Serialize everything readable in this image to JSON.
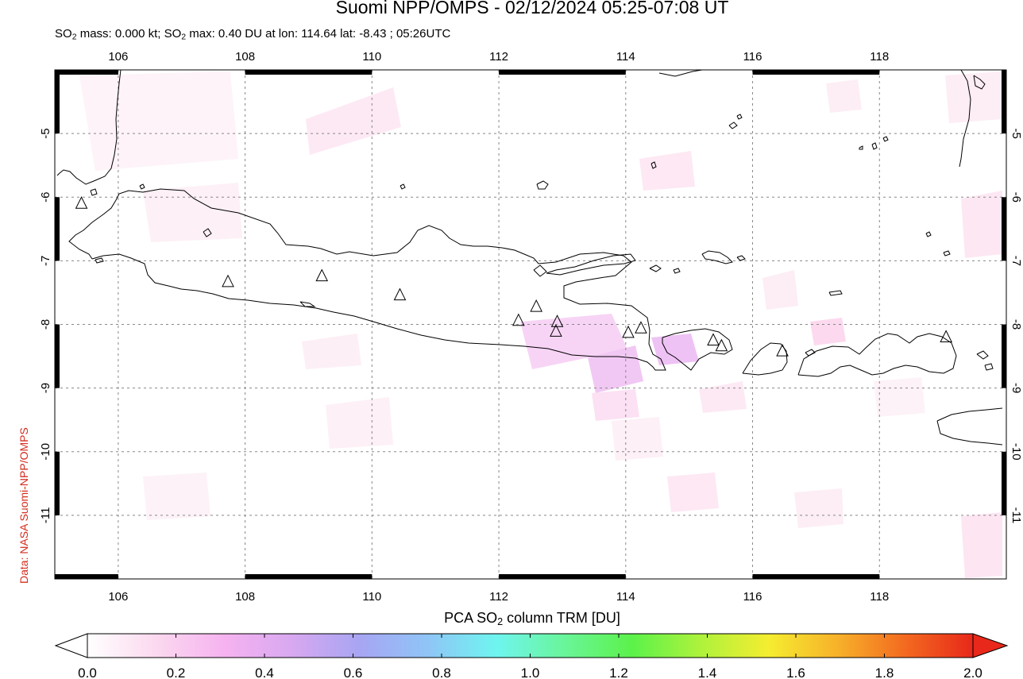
{
  "header": {
    "title": "Suomi NPP/OMPS - 02/12/2024 05:25-07:08 UT",
    "subtitle_parts": {
      "p1": "SO",
      "sub1": "2",
      "p2": " mass: 0.000 kt; SO",
      "sub2": "2",
      "p3": " max: 0.40 DU at lon: 114.64 lat: -8.43 ; 05:26UTC"
    }
  },
  "credit": "Data: NASA Suomi-NPP/OMPS",
  "map": {
    "lon_range": [
      105,
      120
    ],
    "lat_range": [
      -12,
      -4
    ],
    "lon_ticks": [
      106,
      108,
      110,
      112,
      114,
      116,
      118
    ],
    "lat_ticks": [
      -5,
      -6,
      -7,
      -8,
      -9,
      -10,
      -11
    ],
    "lon_tick_labels": [
      "106",
      "108",
      "110",
      "112",
      "114",
      "116",
      "118"
    ],
    "lat_tick_labels": [
      "-5",
      "-6",
      "-7",
      "-8",
      "-9",
      "-10",
      "-11"
    ],
    "grid": true,
    "volcano_marker_icon": "triangle-outline-icon",
    "volcanoes": [
      {
        "lon": 105.42,
        "lat": -6.1
      },
      {
        "lon": 107.73,
        "lat": -7.33
      },
      {
        "lon": 109.21,
        "lat": -7.24
      },
      {
        "lon": 110.44,
        "lat": -7.54
      },
      {
        "lon": 112.31,
        "lat": -7.94
      },
      {
        "lon": 112.59,
        "lat": -7.72
      },
      {
        "lon": 112.92,
        "lat": -7.96
      },
      {
        "lon": 112.9,
        "lat": -8.11
      },
      {
        "lon": 114.04,
        "lat": -8.13
      },
      {
        "lon": 114.24,
        "lat": -8.06
      },
      {
        "lon": 115.38,
        "lat": -8.25
      },
      {
        "lon": 115.51,
        "lat": -8.34
      },
      {
        "lon": 116.47,
        "lat": -8.42
      },
      {
        "lon": 119.05,
        "lat": -8.2
      }
    ],
    "so2_max_point": {
      "lon": 114.64,
      "lat": -8.43,
      "value": 0.4
    }
  },
  "colorbar": {
    "title_parts": {
      "p1": "PCA SO",
      "sub": "2",
      "p2": " column TRM [DU]"
    },
    "min": 0.0,
    "max": 2.0,
    "tick_values": [
      0.0,
      0.2,
      0.4,
      0.6,
      0.8,
      1.0,
      1.2,
      1.4,
      1.6,
      1.8,
      2.0
    ],
    "tick_labels": [
      "0.0",
      "0.2",
      "0.4",
      "0.6",
      "0.8",
      "1.0",
      "1.2",
      "1.4",
      "1.6",
      "1.8",
      "2.0"
    ],
    "colors": [
      "#ffffff",
      "#fbd9ef",
      "#f6b3f0",
      "#d8a8f0",
      "#a7a5f3",
      "#8fc5f6",
      "#6ff5f0",
      "#69f59a",
      "#5cf24a",
      "#aef23c",
      "#f5ed30",
      "#f7b22a",
      "#f36a20",
      "#e8281a"
    ]
  }
}
